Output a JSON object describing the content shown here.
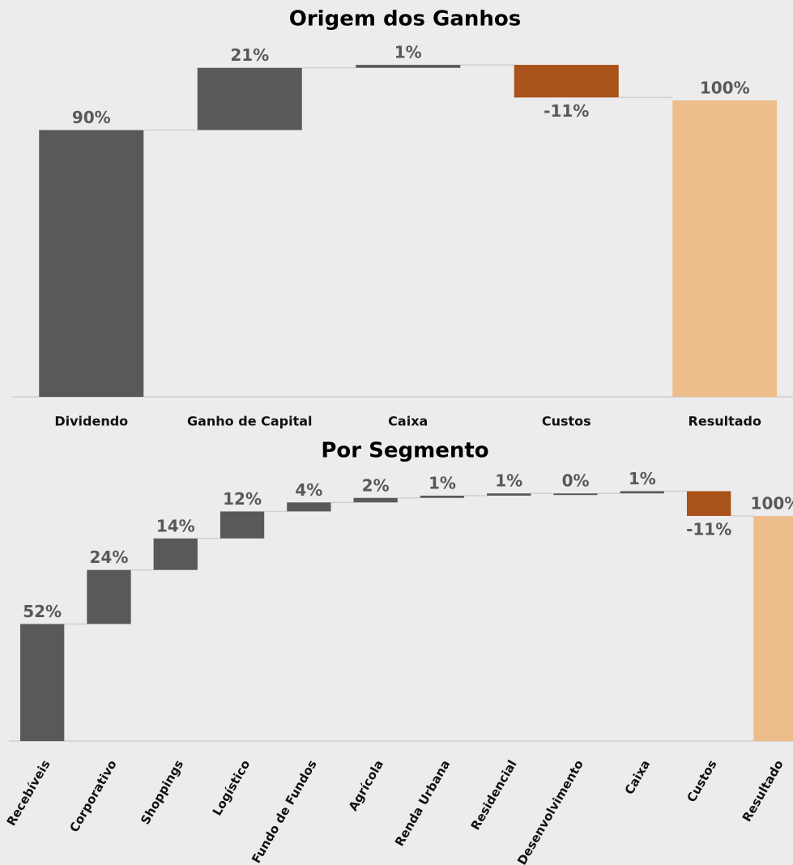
{
  "chart_data": [
    {
      "type": "waterfall",
      "title": "Origem dos Ganhos",
      "categories": [
        "Dividendo",
        "Ganho de Capital",
        "Caixa",
        "Custos",
        "Resultado"
      ],
      "values": [
        90,
        21,
        1,
        -11,
        100
      ],
      "value_labels": [
        "90%",
        "21%",
        "1%",
        "-11%",
        "100%"
      ],
      "measure": [
        "relative",
        "relative",
        "relative",
        "relative",
        "total"
      ],
      "color": "#595959",
      "negative_color": "#a9521a",
      "total_color": "#eebd8c",
      "ylim": [
        0,
        120
      ]
    },
    {
      "type": "waterfall",
      "title": "Por Segmento",
      "categories": [
        "Recebíveis",
        "Corporativo",
        "Shoppings",
        "Logístico",
        "Fundo de Fundos",
        "Agrícola",
        "Renda Urbana",
        "Residencial",
        "Desenvolvimento",
        "Caixa",
        "Custos",
        "Resultado"
      ],
      "values": [
        52,
        24,
        14,
        12,
        4,
        2,
        1,
        1,
        0,
        1,
        -11,
        100
      ],
      "value_labels": [
        "52%",
        "24%",
        "14%",
        "12%",
        "4%",
        "2%",
        "1%",
        "1%",
        "0%",
        "1%",
        "-11%",
        "100%"
      ],
      "measure": [
        "relative",
        "relative",
        "relative",
        "relative",
        "relative",
        "relative",
        "relative",
        "relative",
        "relative",
        "relative",
        "relative",
        "total"
      ],
      "color": "#595959",
      "negative_color": "#a9521a",
      "total_color": "#eebd8c",
      "ylim": [
        0,
        115
      ]
    }
  ]
}
